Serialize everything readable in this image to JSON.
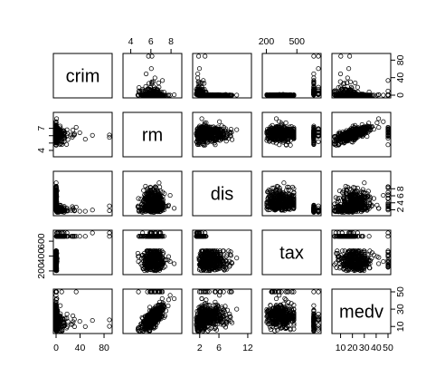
{
  "chart_data": {
    "type": "scatter",
    "variables": [
      "crim",
      "rm",
      "dis",
      "tax",
      "medv"
    ],
    "axes": {
      "crim": {
        "range": [
          0,
          89
        ],
        "ticks": [
          0,
          40,
          80
        ],
        "tick_labels": [
          "0",
          "40",
          "80"
        ]
      },
      "rm": {
        "range": [
          3.5,
          8.8
        ],
        "ticks": [
          4,
          6,
          8
        ],
        "tick_labels": [
          "4",
          "6",
          "8"
        ],
        "right_ticks": [
          4,
          5,
          6,
          7
        ],
        "right_tick_labels": [
          "4",
          "",
          "",
          "7"
        ]
      },
      "dis": {
        "range": [
          1.1,
          12.2
        ],
        "ticks": [
          2,
          6,
          12
        ],
        "tick_labels": [
          "2",
          "6",
          "12"
        ],
        "right_ticks": [
          2,
          4,
          6,
          8
        ],
        "right_tick_labels": [
          "2",
          "4",
          "6",
          "8"
        ]
      },
      "tax": {
        "range": [
          187,
          711
        ],
        "ticks": [
          200,
          500
        ],
        "tick_labels": [
          "200",
          "500"
        ],
        "left_ticks": [
          200,
          400,
          600
        ],
        "left_tick_labels": [
          "200",
          "400",
          "600"
        ]
      },
      "medv": {
        "range": [
          5,
          50
        ],
        "ticks": [
          10,
          30,
          50
        ],
        "tick_labels": [
          "10",
          "30",
          "50"
        ],
        "right_ticks": [
          10,
          30,
          50
        ],
        "right_tick_labels": [
          "10",
          "30",
          "50"
        ],
        "bottom_ticks": [
          10,
          20,
          30,
          40,
          50
        ],
        "bottom_tick_labels": [
          "10",
          "20",
          "30",
          "40",
          "50"
        ]
      }
    },
    "top_axes": [
      "rm",
      "tax"
    ],
    "right_axes": [
      "crim",
      "dis",
      "medv"
    ],
    "left_axes": [
      "rm",
      "tax"
    ],
    "bottom_axes": [
      "crim",
      "dis",
      "medv"
    ],
    "points_per_panel": 506,
    "marker": "open-circle",
    "grid": false
  }
}
